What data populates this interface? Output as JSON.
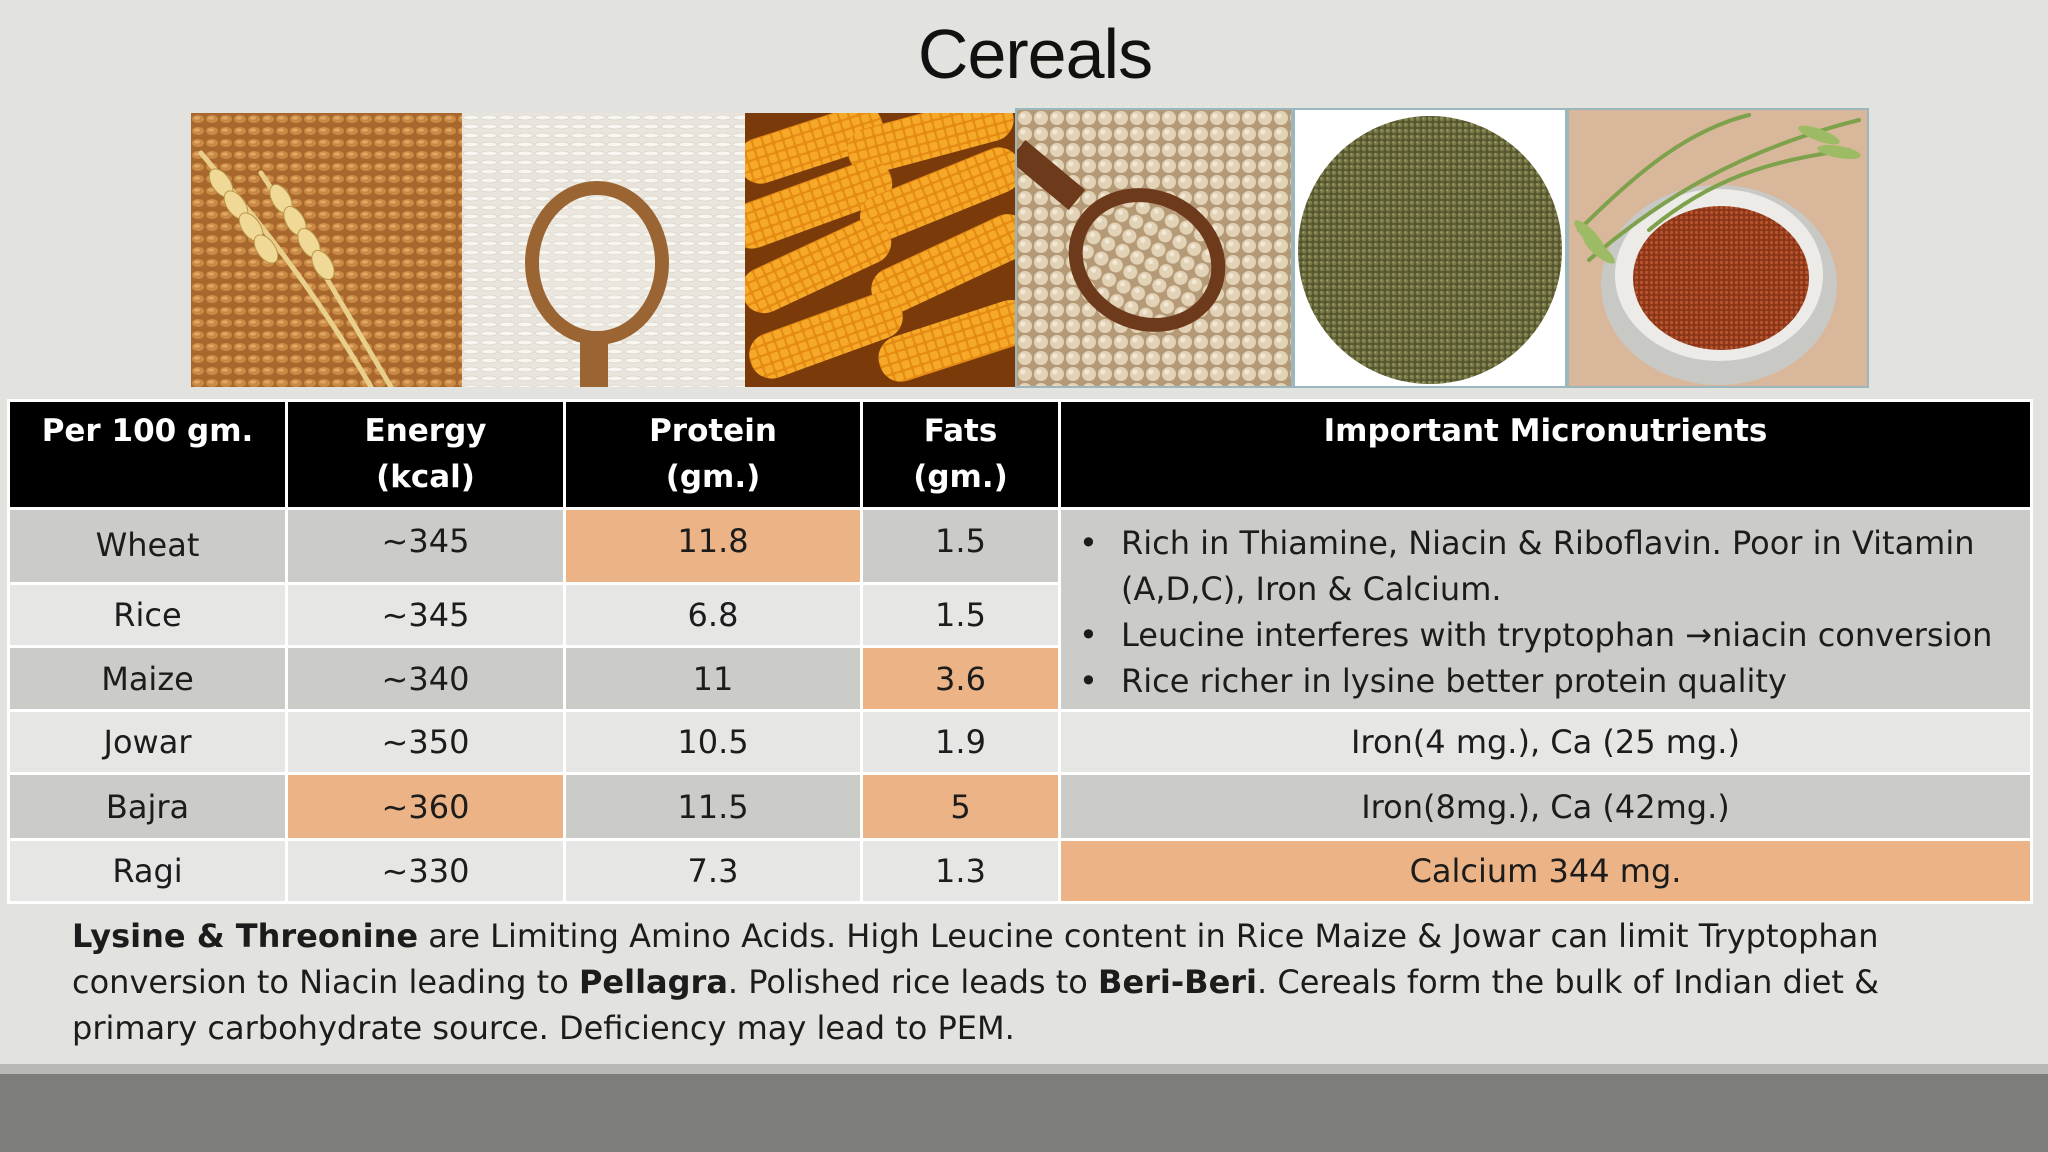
{
  "slide": {
    "title": "Cereals"
  },
  "images": [
    {
      "name": "wheat-photo",
      "subject": "wheat grains with ears"
    },
    {
      "name": "rice-photo",
      "subject": "rice grains in wooden spoon"
    },
    {
      "name": "maize-photo",
      "subject": "maize cobs"
    },
    {
      "name": "soybean-photo",
      "subject": "beans in wooden spoon"
    },
    {
      "name": "bajra-photo",
      "subject": "millet grains heap"
    },
    {
      "name": "ragi-photo",
      "subject": "finger millet in bowl with ears"
    }
  ],
  "table": {
    "headers": {
      "per": "Per 100 gm.",
      "energy_1": "Energy",
      "energy_2": "(kcal)",
      "protein_1": "Protein",
      "protein_2": "(gm.)",
      "fats_1": "Fats",
      "fats_2": "(gm.)",
      "micro": "Important  Micronutrients"
    },
    "rows": [
      {
        "cereal": "Wheat",
        "energy": "~345",
        "protein": "11.8",
        "fats": "1.5"
      },
      {
        "cereal": "Rice",
        "energy": "~345",
        "protein": "6.8",
        "fats": "1.5"
      },
      {
        "cereal": "Maize",
        "energy": "~340",
        "protein": "11",
        "fats": "3.6"
      },
      {
        "cereal": "Jowar",
        "energy": "~350",
        "protein": "10.5",
        "fats": "1.9",
        "micro": "Iron(4 mg.), Ca (25 mg.)"
      },
      {
        "cereal": "Bajra",
        "energy": "~360",
        "protein": "11.5",
        "fats": "5",
        "micro": "Iron(8mg.), Ca (42mg.)"
      },
      {
        "cereal": "Ragi",
        "energy": "~330",
        "protein": "7.3",
        "fats": "1.3",
        "micro": "Calcium 344 mg."
      }
    ],
    "micro_bullets": [
      "Rich in Thiamine, Niacin & Riboflavin. Poor in Vitamin (A,D,C), Iron & Calcium.",
      "Leucine interferes with tryptophan →niacin conversion",
      "Rice richer in lysine better protein quality"
    ],
    "highlight_color": "#ecb486"
  },
  "footnote": {
    "b1": "Lysine & Threonine",
    "t1": " are Limiting Amino Acids. High Leucine content in Rice Maize & Jowar can limit Tryptophan conversion to Niacin leading to ",
    "b2": "Pellagra",
    "t2": ". Polished rice leads to ",
    "b3": "Beri-Beri",
    "t3": ". Cereals form the bulk of Indian diet & primary carbohydrate source. Deficiency may lead to PEM."
  }
}
